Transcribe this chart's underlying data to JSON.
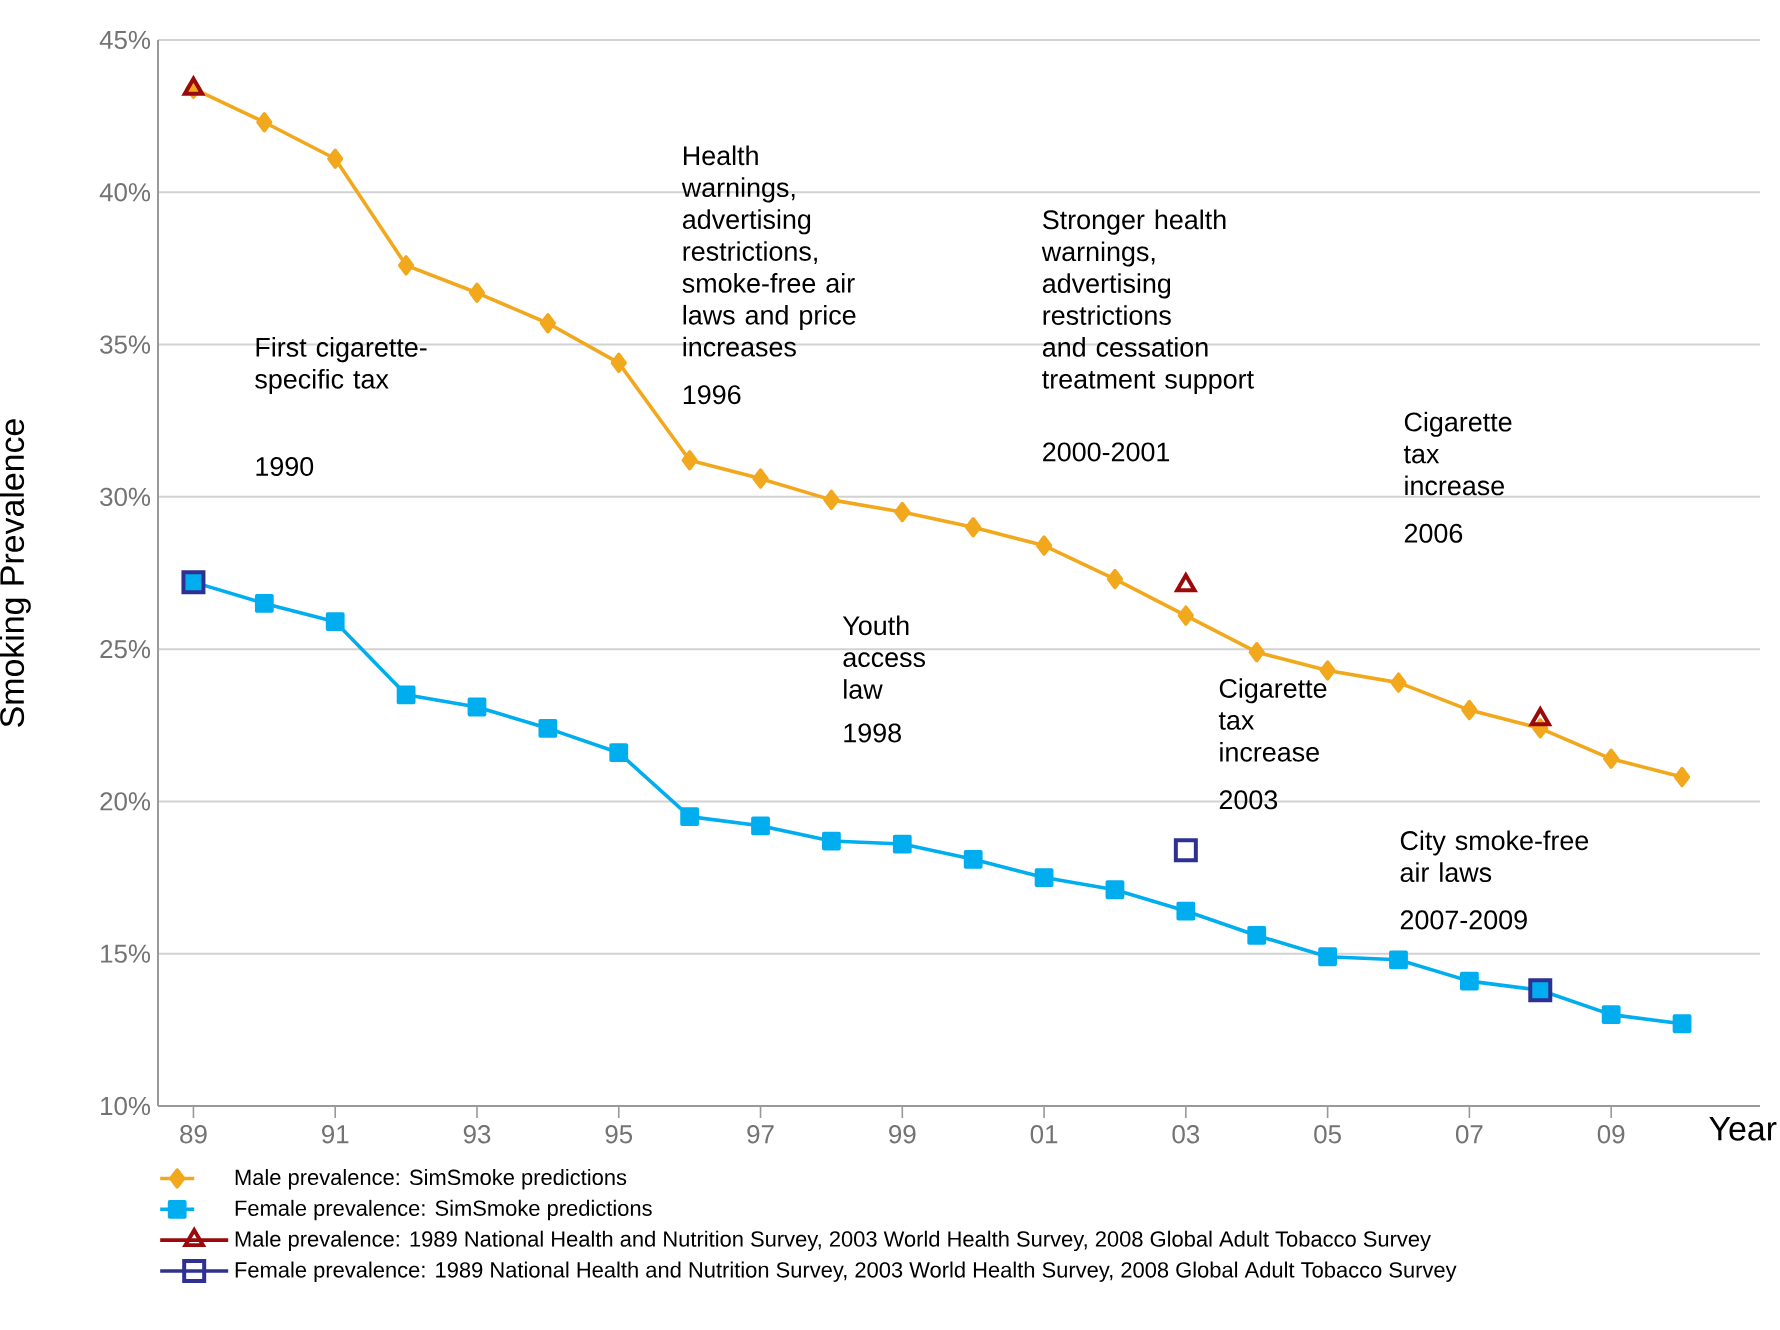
{
  "chart_data": {
    "type": "line",
    "xlabel": "Year",
    "ylabel": "Smoking Prevalence",
    "xlim": [
      1988.5,
      2011.1
    ],
    "ylim": [
      10,
      45
    ],
    "xticks": [
      {
        "value": 1989,
        "label": "89"
      },
      {
        "value": 1991,
        "label": "91"
      },
      {
        "value": 1993,
        "label": "93"
      },
      {
        "value": 1995,
        "label": "95"
      },
      {
        "value": 1997,
        "label": "97"
      },
      {
        "value": 1999,
        "label": "99"
      },
      {
        "value": 2001,
        "label": "01"
      },
      {
        "value": 2003,
        "label": "03"
      },
      {
        "value": 2005,
        "label": "05"
      },
      {
        "value": 2007,
        "label": "07"
      },
      {
        "value": 2009,
        "label": "09"
      }
    ],
    "yticks": [
      {
        "value": 10,
        "label": "10%"
      },
      {
        "value": 15,
        "label": "15%"
      },
      {
        "value": 20,
        "label": "20%"
      },
      {
        "value": 25,
        "label": "25%"
      },
      {
        "value": 30,
        "label": "30%"
      },
      {
        "value": 35,
        "label": "35%"
      },
      {
        "value": 40,
        "label": "40%"
      },
      {
        "value": 45,
        "label": "45%"
      }
    ],
    "grid": "y",
    "legend": "bottom",
    "series": [
      {
        "name": "Male prevalence: 1989 National Health and Nutrition Survey, 2003 World Health Survey, 2008 Global Adult Tobacco Survey",
        "type": "scatter",
        "marker": "triangle",
        "color": "#9b0a0a",
        "x": [
          1989,
          2003,
          2008
        ],
        "values": [
          43.4,
          27.1,
          22.7
        ]
      },
      {
        "name": "Female prevalence: 1989 National Health and Nutrition Survey, 2003 World Health Survey, 2008 Global Adult Tobacco Survey",
        "type": "scatter",
        "marker": "square",
        "color": "#2e3192",
        "x": [
          1989,
          2003,
          2008
        ],
        "values": [
          27.2,
          18.4,
          13.8
        ]
      },
      {
        "name": "Male prevalence: SimSmoke predictions",
        "type": "line",
        "marker": "diamond",
        "color": "#f2a81d",
        "x": [
          1989,
          1990,
          1991,
          1992,
          1993,
          1994,
          1995,
          1996,
          1997,
          1998,
          1999,
          2000,
          2001,
          2002,
          2003,
          2004,
          2005,
          2006,
          2007,
          2008,
          2009,
          2010
        ],
        "values": [
          43.4,
          42.3,
          41.1,
          37.6,
          36.7,
          35.7,
          34.4,
          31.2,
          30.6,
          29.9,
          29.5,
          29.0,
          28.4,
          27.3,
          26.1,
          24.9,
          24.3,
          23.9,
          23.0,
          22.4,
          21.4,
          20.8
        ]
      },
      {
        "name": "Female prevalence: SimSmoke predictions",
        "type": "line",
        "marker": "square",
        "color": "#00aeef",
        "x": [
          1989,
          1990,
          1991,
          1992,
          1993,
          1994,
          1995,
          1996,
          1997,
          1998,
          1999,
          2000,
          2001,
          2002,
          2003,
          2004,
          2005,
          2006,
          2007,
          2008,
          2009,
          2010
        ],
        "values": [
          27.2,
          26.5,
          25.9,
          23.5,
          23.1,
          22.4,
          21.6,
          19.5,
          19.2,
          18.7,
          18.6,
          18.1,
          17.5,
          17.1,
          16.4,
          15.6,
          14.9,
          14.8,
          14.1,
          13.8,
          13.0,
          12.7
        ]
      }
    ],
    "annotations": [
      "First cigarette-specific tax",
      "1990",
      "Health warnings, advertising restrictions, smoke-free air laws and price increases",
      "1996",
      "Stronger health warnings, advertising restrictions and cessation treatment support",
      "2000-2001",
      "Cigarette tax increase",
      "2006",
      "Youth access law",
      "1998",
      "Cigarette tax increase",
      "2003",
      "City smoke-free air laws",
      "2007-2009"
    ]
  }
}
